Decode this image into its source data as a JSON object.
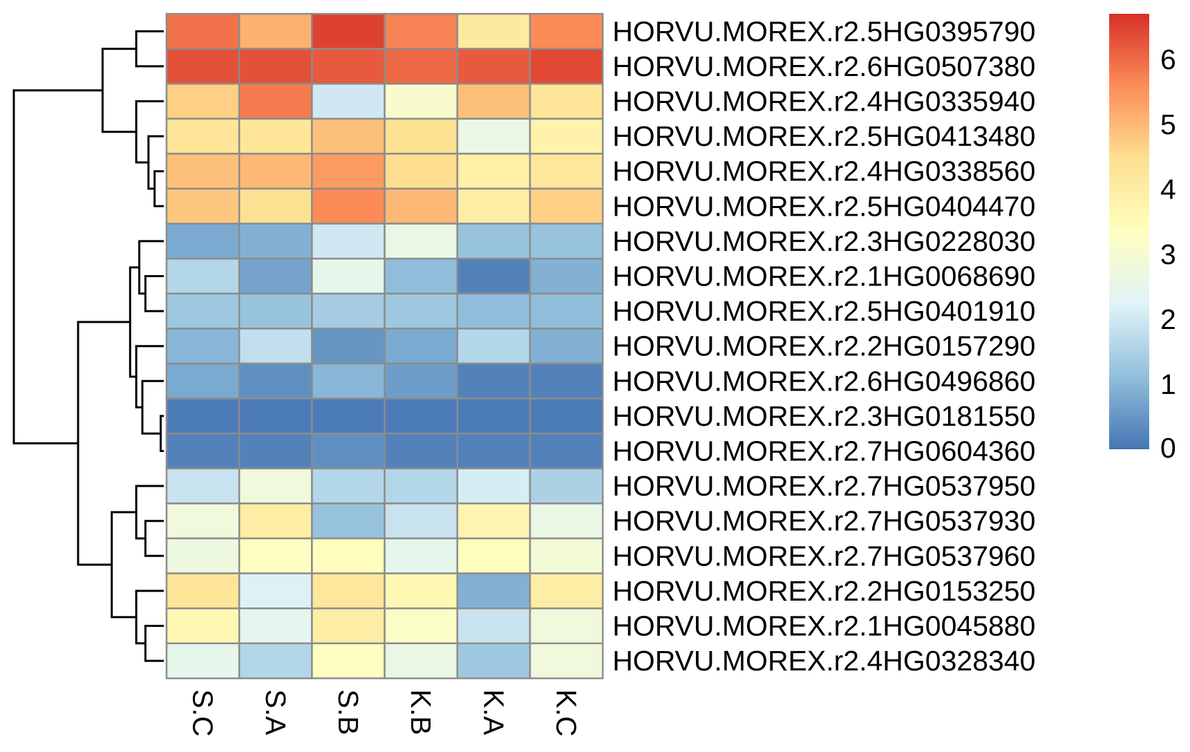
{
  "chart_data": {
    "type": "heatmap",
    "title": "",
    "columns": [
      "S.C",
      "S.A",
      "S.B",
      "K.B",
      "K.A",
      "K.C"
    ],
    "rows": [
      "HORVU.MOREX.r2.5HG0395790",
      "HORVU.MOREX.r2.6HG0507380",
      "HORVU.MOREX.r2.4HG0335940",
      "HORVU.MOREX.r2.5HG0413480",
      "HORVU.MOREX.r2.4HG0338560",
      "HORVU.MOREX.r2.5HG0404470",
      "HORVU.MOREX.r2.3HG0228030",
      "HORVU.MOREX.r2.1HG0068690",
      "HORVU.MOREX.r2.5HG0401910",
      "HORVU.MOREX.r2.2HG0157290",
      "HORVU.MOREX.r2.6HG0496860",
      "HORVU.MOREX.r2.3HG0181550",
      "HORVU.MOREX.r2.7HG0604360",
      "HORVU.MOREX.r2.7HG0537950",
      "HORVU.MOREX.r2.7HG0537930",
      "HORVU.MOREX.r2.7HG0537960",
      "HORVU.MOREX.r2.2HG0153250",
      "HORVU.MOREX.r2.1HG0045880",
      "HORVU.MOREX.r2.4HG0328340"
    ],
    "values": [
      [
        5.9,
        5.1,
        6.5,
        5.7,
        4.1,
        5.6
      ],
      [
        6.3,
        6.3,
        6.2,
        6.0,
        6.2,
        6.4
      ],
      [
        4.7,
        5.8,
        2.0,
        3.1,
        4.9,
        4.3
      ],
      [
        4.3,
        4.3,
        4.9,
        4.4,
        2.6,
        3.8
      ],
      [
        4.9,
        5.0,
        5.4,
        4.5,
        3.9,
        4.2
      ],
      [
        4.8,
        4.4,
        5.6,
        5.0,
        4.0,
        4.7
      ],
      [
        0.8,
        0.9,
        2.0,
        2.6,
        1.2,
        1.2
      ],
      [
        1.6,
        0.7,
        2.5,
        1.1,
        0.2,
        0.9
      ],
      [
        1.3,
        1.2,
        1.4,
        1.3,
        1.1,
        1.1
      ],
      [
        1.0,
        1.8,
        0.5,
        0.8,
        1.6,
        0.9
      ],
      [
        0.8,
        0.4,
        1.0,
        0.6,
        0.2,
        0.2
      ],
      [
        0.1,
        0.1,
        0.1,
        0.1,
        0.1,
        0.1
      ],
      [
        0.2,
        0.2,
        0.4,
        0.2,
        0.2,
        0.2
      ],
      [
        1.9,
        2.8,
        1.6,
        1.6,
        2.1,
        1.5
      ],
      [
        2.8,
        4.0,
        1.2,
        1.9,
        3.7,
        2.6
      ],
      [
        2.7,
        3.3,
        3.4,
        2.5,
        3.4,
        2.9
      ],
      [
        4.3,
        2.2,
        4.2,
        3.6,
        0.9,
        4.0
      ],
      [
        3.6,
        2.4,
        4.0,
        3.2,
        1.9,
        2.8
      ],
      [
        2.5,
        1.6,
        3.3,
        2.6,
        1.3,
        2.8
      ]
    ],
    "color_scale": {
      "min": 0,
      "max": 6.7,
      "colors": [
        "#4575b4",
        "#91bfdb",
        "#e0f3f8",
        "#ffffbf",
        "#fee090",
        "#fc8d59",
        "#d73027"
      ],
      "ticks": [
        0,
        1,
        2,
        3,
        4,
        5,
        6
      ]
    },
    "row_dendrogram": {
      "merges": [
        [
          11,
          12,
          0.05
        ],
        [
          10,
          -1,
          0.35
        ],
        [
          9,
          -2,
          0.45
        ],
        [
          7,
          8,
          0.3
        ],
        [
          6,
          -4,
          0.4
        ],
        [
          -5,
          -3,
          0.55
        ],
        [
          4,
          5,
          0.15
        ],
        [
          3,
          -7,
          0.25
        ],
        [
          2,
          -8,
          0.45
        ],
        [
          0,
          1,
          0.45
        ],
        [
          -10,
          -9,
          1.0
        ],
        [
          17,
          18,
          0.3
        ],
        [
          16,
          -12,
          0.45
        ],
        [
          14,
          15,
          0.3
        ],
        [
          13,
          -14,
          0.45
        ],
        [
          -15,
          -13,
          0.85
        ],
        [
          -6,
          -16,
          1.4
        ],
        [
          -11,
          -17,
          2.45
        ]
      ]
    }
  }
}
